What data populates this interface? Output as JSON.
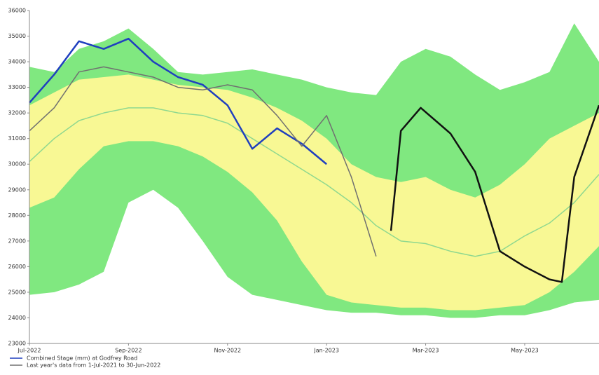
{
  "chart_data": {
    "type": "line",
    "x": [
      0,
      0.5,
      1,
      1.5,
      2,
      2.5,
      3,
      3.5,
      4,
      4.5,
      5,
      5.5,
      6,
      6.5,
      7,
      7.5,
      8,
      8.5,
      9,
      9.5,
      10,
      10.5,
      11,
      11.5
    ],
    "xlim": [
      0,
      11.5
    ],
    "xticks": [
      {
        "value": 0,
        "label": "Jul-2022"
      },
      {
        "value": 2,
        "label": "Sep-2022"
      },
      {
        "value": 4,
        "label": "Nov-2022"
      },
      {
        "value": 6,
        "label": "Jan-2023"
      },
      {
        "value": 8,
        "label": "Mar-2023"
      },
      {
        "value": 10,
        "label": "May-2023"
      }
    ],
    "ylim": [
      23000,
      36000
    ],
    "yticks": [
      23000,
      24000,
      25000,
      26000,
      27000,
      28000,
      29000,
      30000,
      31000,
      32000,
      33000,
      34000,
      35000,
      36000
    ],
    "series": [
      {
        "kind": "band",
        "color": "#80e880",
        "low": [
          24900,
          25000,
          25300,
          25800,
          28500,
          29000,
          28300,
          27000,
          25600,
          24900,
          24700,
          24500,
          24300,
          24200,
          24200,
          24100,
          24100,
          24000,
          24000,
          24100,
          24100,
          24300,
          24600,
          24700
        ],
        "high": [
          33800,
          33600,
          34500,
          34800,
          35300,
          34500,
          33600,
          33500,
          33600,
          33700,
          33500,
          33300,
          33000,
          32800,
          32700,
          34000,
          34500,
          34200,
          33500,
          32900,
          33200,
          33600,
          35500,
          34000
        ]
      },
      {
        "kind": "band",
        "color": "#f8f894",
        "low": [
          28300,
          28700,
          29800,
          30700,
          30900,
          30900,
          30700,
          30300,
          29700,
          28900,
          27800,
          26200,
          24900,
          24600,
          24500,
          24400,
          24400,
          24300,
          24300,
          24400,
          24500,
          25000,
          25800,
          26800
        ],
        "high": [
          32300,
          32800,
          33300,
          33400,
          33500,
          33300,
          33100,
          33000,
          32900,
          32600,
          32200,
          31700,
          31000,
          30000,
          29500,
          29300,
          29500,
          29000,
          28700,
          29200,
          30000,
          31000,
          31500,
          32000
        ]
      },
      {
        "kind": "line",
        "color": "#8fd88f",
        "width": 1.5,
        "values": [
          30100,
          31000,
          31700,
          32000,
          32200,
          32200,
          32000,
          31900,
          31600,
          31000,
          30400,
          29800,
          29200,
          28500,
          27600,
          27000,
          26900,
          26600,
          26400,
          26600,
          27200,
          27700,
          28500,
          29600
        ]
      },
      {
        "kind": "line",
        "name": "Combined Stage (mm) at Godfrey Road",
        "color": "#1f3fbf",
        "width": 2.5,
        "values": [
          32400,
          33500,
          34800,
          34500,
          34900,
          34000,
          33400,
          33100,
          32300,
          30600,
          31400,
          30800,
          30000,
          null,
          null,
          null,
          null,
          null,
          null,
          null,
          null,
          null,
          null,
          null
        ]
      },
      {
        "kind": "line",
        "name": "Last year's data from 1-Jul-2021 to 30-Jun-2022",
        "color": "#707070",
        "width": 1.5,
        "values": [
          31300,
          32200,
          33600,
          33800,
          33600,
          33400,
          33000,
          32900,
          33100,
          32900,
          31900,
          30700,
          31900,
          29500,
          26400,
          null,
          null,
          null,
          null,
          null,
          null,
          null,
          null,
          null
        ]
      },
      {
        "kind": "line",
        "color": "#111111",
        "width": 2.5,
        "x": [
          7.3,
          7.5,
          7.9,
          8.5,
          9,
          9.5,
          10,
          10.5,
          10.75,
          11,
          11.5
        ],
        "values": [
          27400,
          31300,
          32200,
          31200,
          29700,
          26600,
          26000,
          25500,
          25400,
          29500,
          32300
        ]
      }
    ]
  }
}
